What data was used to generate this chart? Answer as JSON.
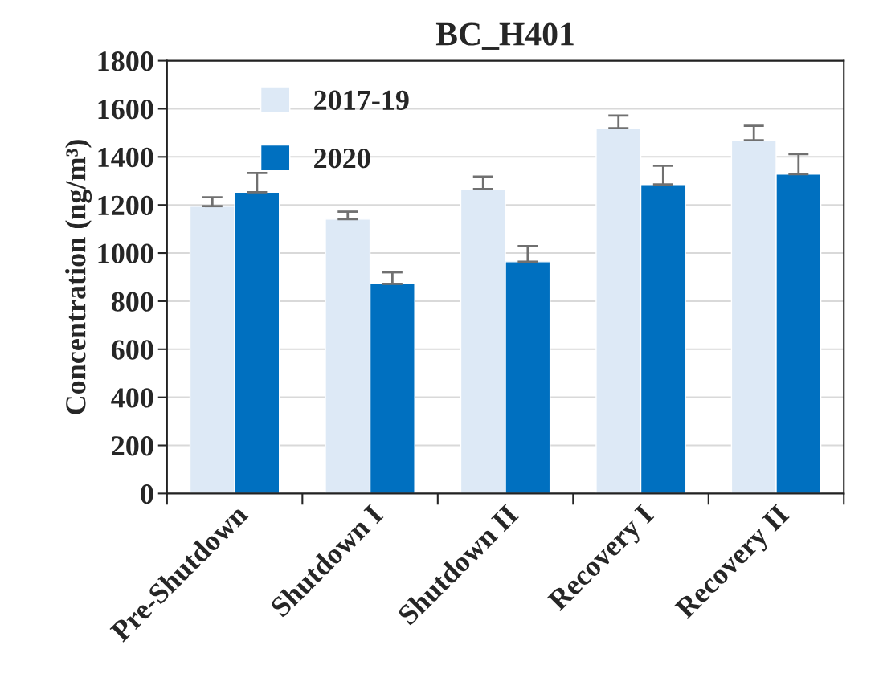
{
  "chart_data": {
    "type": "bar",
    "title": "BC_H401",
    "ylabel": "Concentration (ng/m³)",
    "categories": [
      "Pre-Shutdown",
      "Shutdown I",
      "Shutdown II",
      "Recovery I",
      "Recovery II"
    ],
    "series": [
      {
        "name": "2017-19",
        "color": "#dde9f6",
        "values": [
          1195,
          1141,
          1266,
          1519,
          1469
        ],
        "errors": [
          [
            1195,
            1232
          ],
          [
            1141,
            1172
          ],
          [
            1266,
            1318
          ],
          [
            1519,
            1572
          ],
          [
            1469,
            1529
          ]
        ]
      },
      {
        "name": "2020",
        "color": "#0070c0",
        "values": [
          1253,
          872,
          964,
          1285,
          1328
        ],
        "errors": [
          [
            1253,
            1333
          ],
          [
            872,
            920
          ],
          [
            964,
            1029
          ],
          [
            1285,
            1363
          ],
          [
            1328,
            1412
          ]
        ]
      }
    ],
    "ylim": [
      0,
      1800
    ],
    "yticks": [
      0,
      200,
      400,
      600,
      800,
      1000,
      1200,
      1400,
      1600,
      1800
    ],
    "grid": "y",
    "legend": "top left"
  }
}
